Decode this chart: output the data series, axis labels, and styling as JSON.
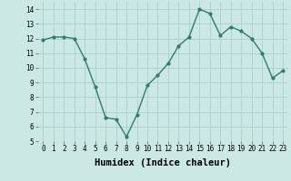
{
  "x": [
    0,
    1,
    2,
    3,
    4,
    5,
    6,
    7,
    8,
    9,
    10,
    11,
    12,
    13,
    14,
    15,
    16,
    17,
    18,
    19,
    20,
    21,
    22,
    23
  ],
  "y": [
    11.9,
    12.1,
    12.1,
    12.0,
    10.6,
    8.7,
    6.6,
    6.5,
    5.3,
    6.8,
    8.8,
    9.5,
    10.3,
    11.5,
    12.1,
    14.0,
    13.7,
    12.2,
    12.8,
    12.5,
    12.0,
    11.0,
    9.3,
    9.8
  ],
  "xlabel": "Humidex (Indice chaleur)",
  "xlim": [
    -0.5,
    23.5
  ],
  "ylim": [
    5,
    14.5
  ],
  "yticks": [
    5,
    6,
    7,
    8,
    9,
    10,
    11,
    12,
    13,
    14
  ],
  "xticks": [
    0,
    1,
    2,
    3,
    4,
    5,
    6,
    7,
    8,
    9,
    10,
    11,
    12,
    13,
    14,
    15,
    16,
    17,
    18,
    19,
    20,
    21,
    22,
    23
  ],
  "line_color": "#2e7d6e",
  "marker_color": "#2e7d6e",
  "bg_color": "#cce8e5",
  "grid_color": "#aacfcc",
  "tick_label_fontsize": 5.5,
  "xlabel_fontsize": 7.5,
  "marker_size": 2.0,
  "line_width": 1.0
}
